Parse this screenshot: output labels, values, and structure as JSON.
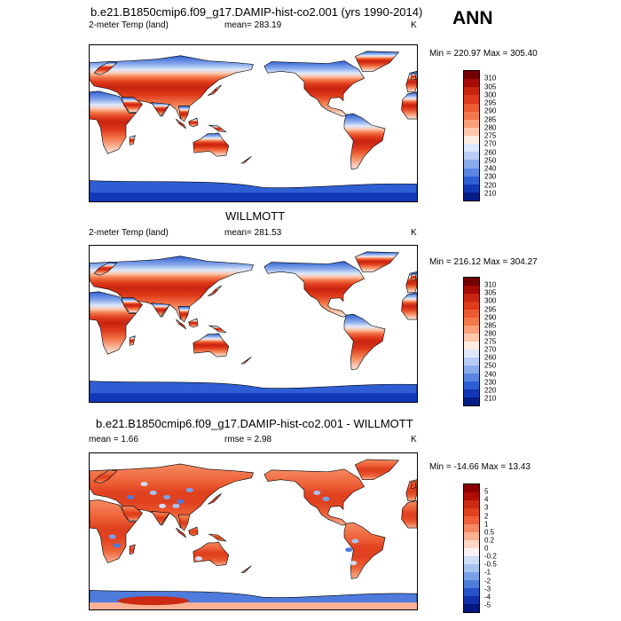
{
  "season": "ANN",
  "panels": [
    {
      "title": "b.e21.B1850cmip6.f09_g17.DAMIP-hist-co2.001 (yrs 1990-2014)",
      "left_label": "2-meter Temp (land)",
      "center_label": "mean= 283.19",
      "units": "K",
      "minmax": "Min = 220.97 Max = 305.40",
      "legend": {
        "labels": [
          "310",
          "305",
          "300",
          "295",
          "290",
          "285",
          "280",
          "275",
          "270",
          "260",
          "250",
          "240",
          "230",
          "220",
          "210"
        ],
        "colors": [
          "#730000",
          "#a60b08",
          "#c8240f",
          "#df3a1b",
          "#ec5a30",
          "#f3794b",
          "#f9a07a",
          "#fcc7ad",
          "#fdece2",
          "#dfe8fb",
          "#b7ccf4",
          "#8aaced",
          "#5a86e2",
          "#2f5ed4",
          "#1237b6",
          "#061c87"
        ]
      },
      "map_style": "warm"
    },
    {
      "title": "WILLMOTT",
      "left_label": "2-meter Temp (land)",
      "center_label": "mean= 281.53",
      "units": "K",
      "minmax": "Min = 216.12 Max = 304.27",
      "legend": {
        "labels": [
          "310",
          "305",
          "300",
          "295",
          "290",
          "285",
          "280",
          "275",
          "270",
          "260",
          "250",
          "240",
          "230",
          "220",
          "210"
        ],
        "colors": [
          "#730000",
          "#a60b08",
          "#c8240f",
          "#df3a1b",
          "#ec5a30",
          "#f3794b",
          "#f9a07a",
          "#fcc7ad",
          "#fdece2",
          "#dfe8fb",
          "#b7ccf4",
          "#8aaced",
          "#5a86e2",
          "#2f5ed4",
          "#1237b6",
          "#061c87"
        ]
      },
      "map_style": "warm"
    },
    {
      "title": "b.e21.B1850cmip6.f09_g17.DAMIP-hist-co2.001 - WILLMOTT",
      "left_label": "mean =   1.66",
      "center_label": "rmse =   2.98",
      "units": "K",
      "minmax": "Min = -14.66 Max =  13.43",
      "legend": {
        "labels": [
          "5",
          "4",
          "3",
          "2",
          "1",
          "0.5",
          "0.2",
          "0",
          "-0.2",
          "-0.5",
          "-1",
          "-2",
          "-3",
          "-4",
          "-5"
        ],
        "colors": [
          "#8e0000",
          "#b00d07",
          "#cc2a12",
          "#e0411f",
          "#ee6137",
          "#f58a62",
          "#f9b094",
          "#fcd7c6",
          "#f7f3f2",
          "#cfddf6",
          "#a8c2f0",
          "#7aa1e8",
          "#4e7bdc",
          "#2853c9",
          "#0f30a8",
          "#051680"
        ]
      },
      "map_style": "diff"
    }
  ]
}
